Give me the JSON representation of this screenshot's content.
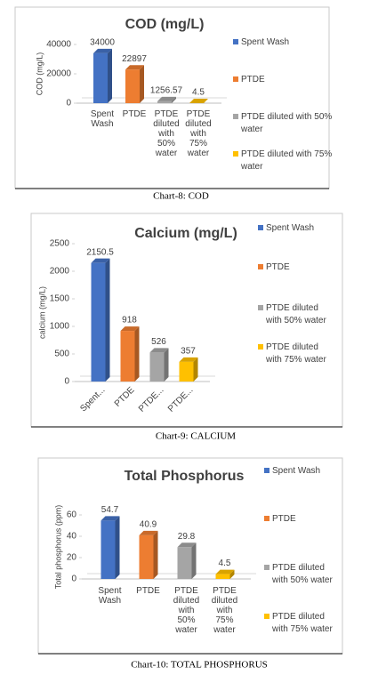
{
  "chart_data": [
    {
      "type": "bar",
      "title": "COD (mg/L)",
      "ylabel": "COD (mg/L)",
      "caption": "Chart-8: COD",
      "categories": [
        "Spent Wash",
        "PTDE",
        "PTDE diluted with 50% water",
        "PTDE diluted with 75% water"
      ],
      "values": [
        34000,
        22897,
        1256.57,
        4.5
      ],
      "colors": [
        "#4472c4",
        "#ed7d31",
        "#a5a5a5",
        "#ffc000"
      ],
      "legend": [
        "Spent Wash",
        "PTDE",
        "PTDE diluted with 50% water",
        "PTDE diluted with 75% water"
      ],
      "ylim": [
        0,
        40000
      ],
      "yticks": [
        0,
        20000,
        40000
      ]
    },
    {
      "type": "bar",
      "title": "Calcium (mg/L)",
      "ylabel": "calcium (mg/L)",
      "caption": "Chart-9: CALCIUM",
      "categories": [
        "Spent...",
        "PTDE",
        "PTDE...",
        "PTDE..."
      ],
      "values": [
        2150.5,
        918,
        526,
        357
      ],
      "colors": [
        "#4472c4",
        "#ed7d31",
        "#a5a5a5",
        "#ffc000"
      ],
      "legend": [
        "Spent Wash",
        "PTDE",
        "PTDE diluted with 50% water",
        "PTDE diluted with 75% water"
      ],
      "ylim": [
        0,
        2500
      ],
      "yticks": [
        0,
        500,
        1000,
        1500,
        2000,
        2500
      ]
    },
    {
      "type": "bar",
      "title": "Total Phosphorus",
      "ylabel": "Total phosphorus (ppm)",
      "caption": "Chart-10: TOTAL PHOSPHORUS",
      "categories": [
        "Spent Wash",
        "PTDE",
        "PTDE diluted with 50% water",
        "PTDE diluted with 75% water"
      ],
      "values": [
        54.7,
        40.9,
        29.8,
        4.5
      ],
      "colors": [
        "#4472c4",
        "#ed7d31",
        "#a5a5a5",
        "#ffc000"
      ],
      "legend": [
        "Spent Wash",
        "PTDE",
        "PTDE diluted with 50% water",
        "PTDE diluted with 75% water"
      ],
      "ylim": [
        0,
        60
      ],
      "yticks": [
        0,
        20,
        40,
        60
      ]
    }
  ]
}
